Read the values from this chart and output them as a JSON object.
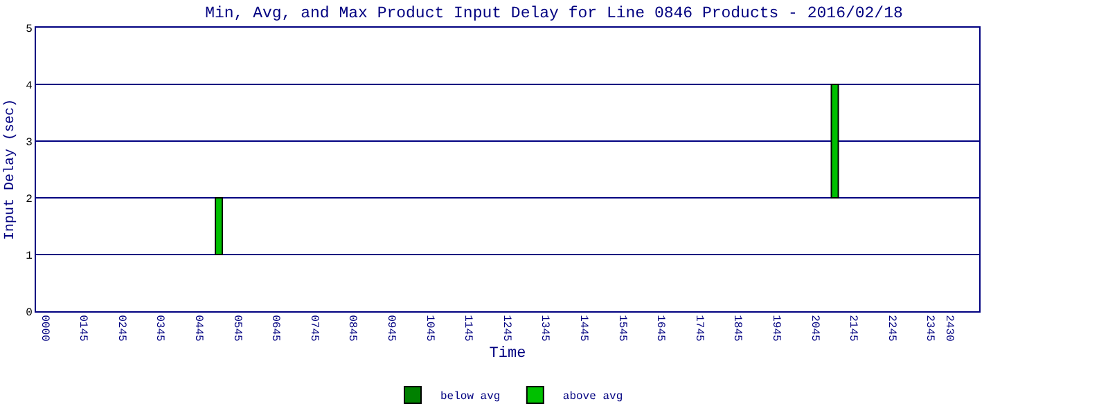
{
  "chart_data": {
    "type": "bar",
    "title": "Min, Avg, and Max Product Input Delay for Line 0846 Products - 2016/02/18",
    "xlabel": "Time",
    "ylabel": "Input Delay (sec)",
    "categories": [
      "0000",
      null,
      "0145",
      null,
      "0245",
      null,
      "0345",
      null,
      "0445",
      null,
      "0545",
      null,
      "0645",
      null,
      "0745",
      null,
      "0845",
      null,
      "0945",
      null,
      "1045",
      null,
      "1145",
      null,
      "1245",
      null,
      "1345",
      null,
      "1445",
      null,
      "1545",
      null,
      "1645",
      null,
      "1745",
      null,
      "1845",
      null,
      "1945",
      null,
      "2045",
      null,
      "2145",
      null,
      "2245",
      null,
      "2345",
      "2430",
      null
    ],
    "series": [
      {
        "name": "below avg",
        "color": "#008000",
        "values": [
          null,
          null,
          null,
          null,
          null,
          null,
          null,
          null,
          null,
          null,
          null,
          null,
          null,
          null,
          null,
          null,
          null,
          null,
          null,
          null,
          null,
          null,
          null,
          null,
          null,
          null,
          null,
          null,
          null,
          null,
          null,
          null,
          null,
          null,
          null,
          null,
          null,
          null,
          null,
          null,
          null,
          null,
          null,
          null,
          null,
          null,
          null,
          null,
          null
        ]
      },
      {
        "name": "above avg",
        "color": "#00c000",
        "base": [
          null,
          null,
          null,
          null,
          null,
          null,
          null,
          null,
          null,
          1,
          null,
          null,
          null,
          null,
          null,
          null,
          null,
          null,
          null,
          null,
          null,
          null,
          null,
          null,
          null,
          null,
          null,
          null,
          null,
          null,
          null,
          null,
          null,
          null,
          null,
          null,
          null,
          null,
          null,
          null,
          null,
          2,
          null,
          null,
          null,
          null,
          null,
          null,
          null
        ],
        "values": [
          null,
          null,
          null,
          null,
          null,
          null,
          null,
          null,
          null,
          1,
          null,
          null,
          null,
          null,
          null,
          null,
          null,
          null,
          null,
          null,
          null,
          null,
          null,
          null,
          null,
          null,
          null,
          null,
          null,
          null,
          null,
          null,
          null,
          null,
          null,
          null,
          null,
          null,
          null,
          null,
          null,
          2,
          null,
          null,
          null,
          null,
          null,
          null,
          null
        ]
      }
    ],
    "ylim": [
      0,
      5
    ],
    "yticks": [
      0,
      1,
      2,
      3,
      4,
      5
    ],
    "grid": "y",
    "legend": "bottom"
  }
}
